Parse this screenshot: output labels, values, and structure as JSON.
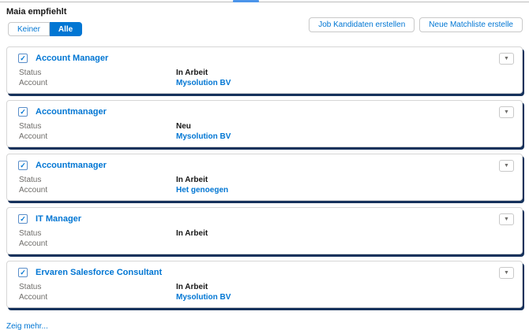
{
  "header": {
    "title": "Maia empfiehlt",
    "toggle": {
      "options": [
        "Keiner",
        "Alle"
      ],
      "selected": "Alle"
    },
    "actions": [
      "Job Kandidaten erstellen",
      "Neue Matchliste erstelle"
    ]
  },
  "cards": [
    {
      "title": "Account Manager",
      "checked": true,
      "fields": [
        {
          "label": "Status",
          "value": "In Arbeit",
          "link": false
        },
        {
          "label": "Account",
          "value": "Mysolution BV",
          "link": true
        }
      ]
    },
    {
      "title": "Accountmanager",
      "checked": true,
      "fields": [
        {
          "label": "Status",
          "value": "Neu",
          "link": false
        },
        {
          "label": "Account",
          "value": "Mysolution BV",
          "link": true
        }
      ]
    },
    {
      "title": "Accountmanager",
      "checked": true,
      "fields": [
        {
          "label": "Status",
          "value": "In Arbeit",
          "link": false
        },
        {
          "label": "Account",
          "value": "Het genoegen",
          "link": true
        }
      ]
    },
    {
      "title": "IT Manager",
      "checked": true,
      "fields": [
        {
          "label": "Status",
          "value": "In Arbeit",
          "link": false
        },
        {
          "label": "Account",
          "value": "",
          "link": false
        }
      ]
    },
    {
      "title": "Ervaren Salesforce Consultant",
      "checked": true,
      "fields": [
        {
          "label": "Status",
          "value": "In Arbeit",
          "link": false
        },
        {
          "label": "Account",
          "value": "Mysolution BV",
          "link": true
        }
      ]
    }
  ],
  "footer": {
    "show_more": "Zeig mehr..."
  },
  "icons": {
    "checkbox_check": "✓",
    "dropdown_caret": "▼"
  },
  "colors": {
    "accent_blue": "#0176d3",
    "tab_indicator_blue": "#4b94ea",
    "card_shadow_navy": "#16325c",
    "label_gray": "#706e6b",
    "value_dark": "#181818",
    "border_gray": "#c9c9c9"
  }
}
